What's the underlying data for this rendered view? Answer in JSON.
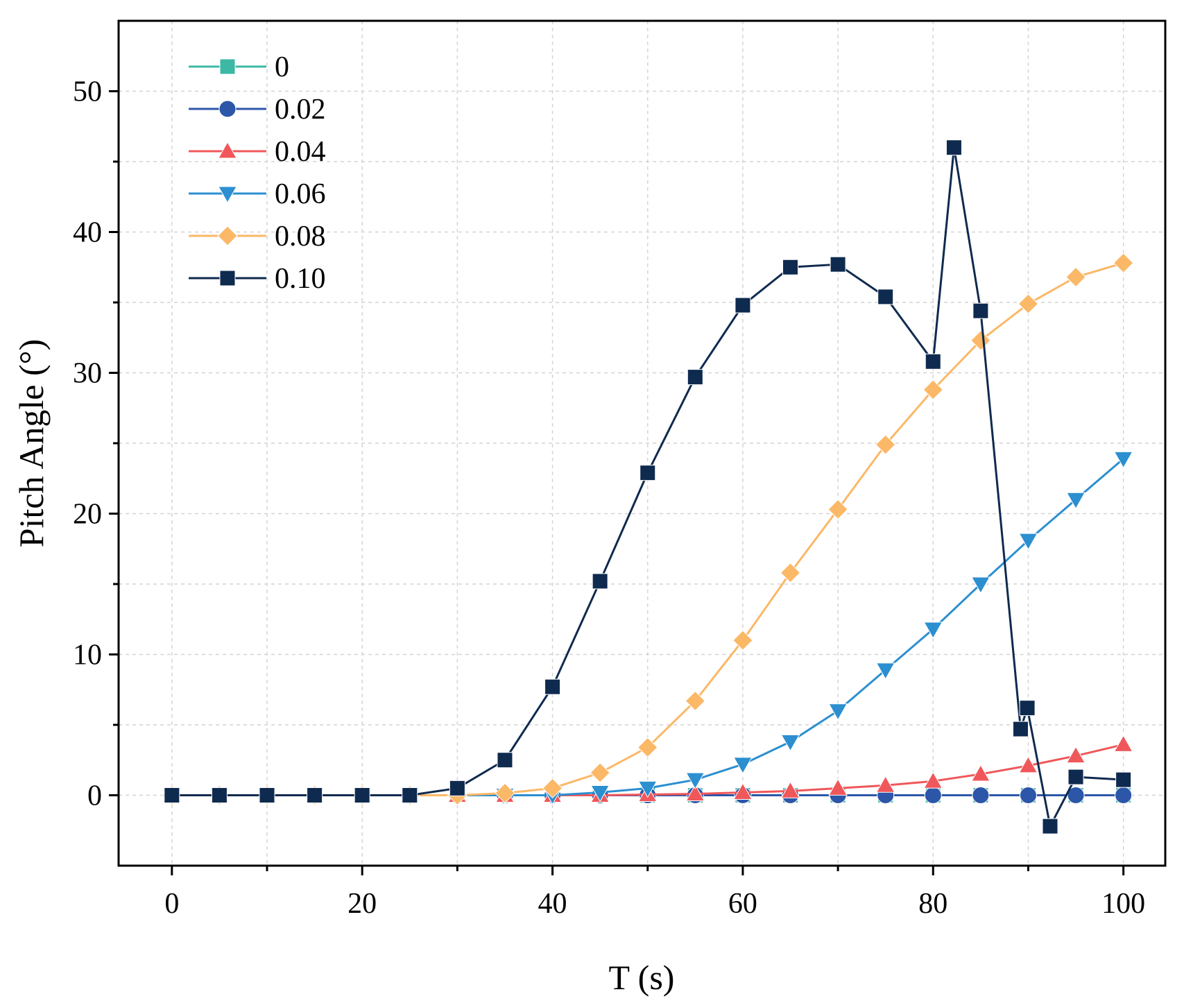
{
  "chart_data": {
    "type": "line",
    "title": "",
    "xlabel": "T (s)",
    "ylabel": "Pitch Angle (°)",
    "xlim": [
      -5.6,
      104.4
    ],
    "ylim": [
      -5,
      55
    ],
    "xticks": [
      0,
      20,
      40,
      60,
      80,
      100
    ],
    "yticks": [
      0,
      10,
      20,
      30,
      40,
      50
    ],
    "xtick_labels": [
      "0",
      "20",
      "40",
      "60",
      "80",
      "100"
    ],
    "ytick_labels": [
      "0",
      "10",
      "20",
      "30",
      "40",
      "50"
    ],
    "minor_xticks": [
      10,
      30,
      50,
      70,
      90
    ],
    "minor_yticks": [
      5,
      15,
      25,
      35,
      45
    ],
    "grid": true,
    "legend_position": "top-left",
    "series": [
      {
        "name": "0",
        "color": "#3cb8a5",
        "marker": "square",
        "x": [
          0,
          5,
          10,
          15,
          20,
          25,
          30,
          35,
          40,
          45,
          50,
          55,
          60,
          65,
          70,
          75,
          80,
          85,
          90,
          95,
          100
        ],
        "values": [
          0,
          0,
          0,
          0,
          0,
          0,
          0,
          0,
          0,
          0,
          0,
          0,
          0,
          0,
          0,
          0,
          0,
          0,
          0,
          0,
          0
        ]
      },
      {
        "name": "0.02",
        "color": "#2c56a8",
        "marker": "circle",
        "x": [
          0,
          5,
          10,
          15,
          20,
          25,
          30,
          35,
          40,
          45,
          50,
          55,
          60,
          65,
          70,
          75,
          80,
          85,
          90,
          95,
          100
        ],
        "values": [
          0,
          0,
          0,
          0,
          0,
          0,
          0,
          0,
          0,
          0,
          0,
          0,
          0,
          0,
          0,
          0,
          0,
          0,
          0,
          0,
          0
        ]
      },
      {
        "name": "0.04",
        "color": "#f0575a",
        "marker": "triangle-up",
        "x": [
          0,
          5,
          10,
          15,
          20,
          25,
          30,
          35,
          40,
          45,
          50,
          55,
          60,
          65,
          70,
          75,
          80,
          85,
          90,
          95,
          100
        ],
        "values": [
          0,
          0,
          0,
          0,
          0,
          0,
          0,
          0,
          0,
          0,
          0.05,
          0.1,
          0.2,
          0.3,
          0.5,
          0.7,
          1.0,
          1.5,
          2.1,
          2.8,
          3.6
        ]
      },
      {
        "name": "0.06",
        "color": "#2b8fd0",
        "marker": "triangle-down",
        "x": [
          0,
          5,
          10,
          15,
          20,
          25,
          30,
          35,
          40,
          45,
          50,
          55,
          60,
          65,
          70,
          75,
          80,
          85,
          90,
          95,
          100
        ],
        "values": [
          0,
          0,
          0,
          0,
          0,
          0,
          0,
          0,
          0,
          0.2,
          0.5,
          1.1,
          2.2,
          3.8,
          6.0,
          8.9,
          11.8,
          15.0,
          18.1,
          21.0,
          23.9
        ]
      },
      {
        "name": "0.08",
        "color": "#fbb867",
        "marker": "diamond",
        "x": [
          0,
          5,
          10,
          15,
          20,
          25,
          30,
          35,
          40,
          45,
          50,
          55,
          60,
          65,
          70,
          75,
          80,
          85,
          90,
          95,
          100
        ],
        "values": [
          0,
          0,
          0,
          0,
          0,
          0,
          0,
          0.15,
          0.5,
          1.6,
          3.4,
          6.7,
          11.0,
          15.8,
          20.3,
          24.9,
          28.8,
          32.3,
          34.9,
          36.8,
          37.8
        ]
      },
      {
        "name": "0.10",
        "color": "#0f2a4f",
        "marker": "square",
        "x": [
          0,
          5,
          10,
          15,
          20,
          25,
          30,
          35,
          40,
          45,
          50,
          55,
          60,
          65,
          70,
          75,
          80,
          82.2,
          85,
          89.2,
          89.9,
          92.3,
          95,
          100
        ],
        "values": [
          0,
          0,
          0,
          0,
          0,
          0,
          0.5,
          2.5,
          7.7,
          15.2,
          22.9,
          29.7,
          34.8,
          37.5,
          37.7,
          35.4,
          30.8,
          46.0,
          34.4,
          4.7,
          6.2,
          -2.2,
          1.3,
          1.1
        ]
      }
    ]
  }
}
